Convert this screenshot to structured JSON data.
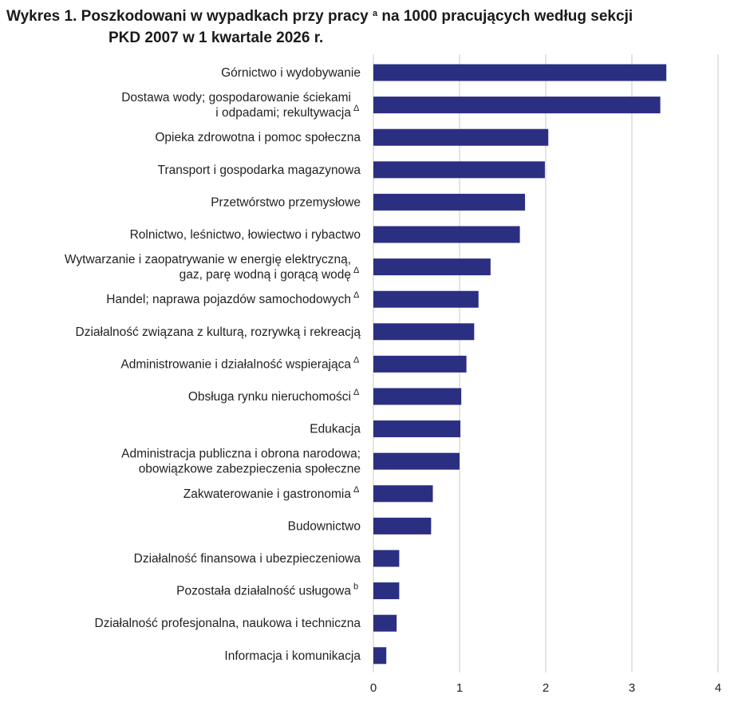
{
  "title": {
    "line1_pre": "Wykres 1. Poszkodowani w wypadkach przy pracy",
    "line1_sup": "a",
    "line1_post": "na 1000 pracujących według sekcji",
    "line2": "PKD 2007 w 1 kwartale 2026 r."
  },
  "chart_data": {
    "type": "bar",
    "orientation": "horizontal",
    "bar_color": "#2b2f82",
    "grid": true,
    "xlim": [
      0,
      4
    ],
    "xticks": [
      "0",
      "1",
      "2",
      "3",
      "4"
    ],
    "categories": [
      {
        "lines": [
          "Górnictwo i wydobywanie"
        ],
        "note": ""
      },
      {
        "lines": [
          "Dostawa wody; gospodarowanie ściekami",
          "i odpadami; rekultywacja"
        ],
        "note": "Δ"
      },
      {
        "lines": [
          "Opieka zdrowotna i pomoc społeczna"
        ],
        "note": ""
      },
      {
        "lines": [
          "Transport i gospodarka magazynowa"
        ],
        "note": ""
      },
      {
        "lines": [
          "Przetwórstwo przemysłowe"
        ],
        "note": ""
      },
      {
        "lines": [
          "Rolnictwo, leśnictwo, łowiectwo i rybactwo"
        ],
        "note": ""
      },
      {
        "lines": [
          "Wytwarzanie i zaopatrywanie w energię elektryczną,",
          "gaz, parę wodną i gorącą wodę"
        ],
        "note": "Δ"
      },
      {
        "lines": [
          "Handel; naprawa pojazdów samochodowych"
        ],
        "note": "Δ"
      },
      {
        "lines": [
          "Działalność związana z kulturą, rozrywką i rekreacją"
        ],
        "note": ""
      },
      {
        "lines": [
          "Administrowanie i działalność wspierająca"
        ],
        "note": "Δ"
      },
      {
        "lines": [
          "Obsługa rynku nieruchomości"
        ],
        "note": "Δ"
      },
      {
        "lines": [
          "Edukacja"
        ],
        "note": ""
      },
      {
        "lines": [
          "Administracja publiczna i obrona narodowa;",
          "obowiązkowe zabezpieczenia społeczne"
        ],
        "note": ""
      },
      {
        "lines": [
          "Zakwaterowanie i gastronomia"
        ],
        "note": "Δ"
      },
      {
        "lines": [
          "Budownictwo"
        ],
        "note": ""
      },
      {
        "lines": [
          "Działalność finansowa i ubezpieczeniowa"
        ],
        "note": ""
      },
      {
        "lines": [
          "Pozostała działalność usługowa"
        ],
        "note": "b"
      },
      {
        "lines": [
          "Działalność profesjonalna, naukowa i techniczna"
        ],
        "note": ""
      },
      {
        "lines": [
          "Informacja i komunikacja"
        ],
        "note": ""
      }
    ],
    "values": [
      3.4,
      3.33,
      2.03,
      1.99,
      1.76,
      1.7,
      1.36,
      1.22,
      1.17,
      1.08,
      1.02,
      1.01,
      1.0,
      0.69,
      0.67,
      0.3,
      0.3,
      0.27,
      0.15
    ]
  }
}
